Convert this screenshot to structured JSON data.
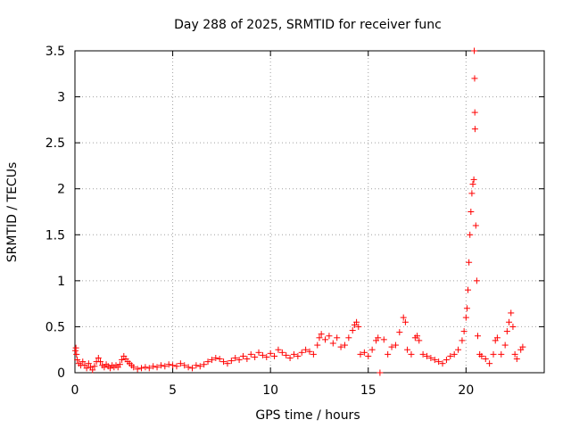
{
  "chart_data": {
    "type": "scatter",
    "title": "Day 288 of 2025, SRMTID for receiver func",
    "xlabel": "GPS time / hours",
    "ylabel": "SRMTID / TECUs",
    "xlim": [
      0,
      24
    ],
    "ylim": [
      0,
      3.5
    ],
    "xticks": [
      0,
      5,
      10,
      15,
      20
    ],
    "xtick_labels": [
      "0",
      "5",
      "10",
      "15",
      "20"
    ],
    "yticks": [
      0,
      0.5,
      1,
      1.5,
      2,
      2.5,
      3,
      3.5
    ],
    "ytick_labels": [
      "0",
      "0.5",
      "1",
      "1.5",
      "2",
      "2.5",
      "3",
      "3.5"
    ],
    "grid": true,
    "marker": "+",
    "series": [
      {
        "name": "SRMTID",
        "color": "#ff0000",
        "points": [
          [
            0.02,
            0.24
          ],
          [
            0.05,
            0.27
          ],
          [
            0.08,
            0.2
          ],
          [
            0.12,
            0.14
          ],
          [
            0.2,
            0.1
          ],
          [
            0.3,
            0.08
          ],
          [
            0.4,
            0.12
          ],
          [
            0.5,
            0.08
          ],
          [
            0.6,
            0.05
          ],
          [
            0.7,
            0.1
          ],
          [
            0.8,
            0.06
          ],
          [
            0.9,
            0.03
          ],
          [
            1.0,
            0.07
          ],
          [
            1.1,
            0.12
          ],
          [
            1.2,
            0.16
          ],
          [
            1.3,
            0.12
          ],
          [
            1.4,
            0.08
          ],
          [
            1.5,
            0.06
          ],
          [
            1.6,
            0.09
          ],
          [
            1.7,
            0.07
          ],
          [
            1.8,
            0.05
          ],
          [
            1.9,
            0.08
          ],
          [
            2.0,
            0.06
          ],
          [
            2.1,
            0.08
          ],
          [
            2.2,
            0.06
          ],
          [
            2.3,
            0.09
          ],
          [
            2.4,
            0.14
          ],
          [
            2.5,
            0.18
          ],
          [
            2.6,
            0.15
          ],
          [
            2.7,
            0.12
          ],
          [
            2.8,
            0.1
          ],
          [
            2.9,
            0.08
          ],
          [
            3.0,
            0.06
          ],
          [
            3.2,
            0.04
          ],
          [
            3.4,
            0.05
          ],
          [
            3.6,
            0.06
          ],
          [
            3.8,
            0.05
          ],
          [
            4.0,
            0.07
          ],
          [
            4.2,
            0.06
          ],
          [
            4.4,
            0.08
          ],
          [
            4.6,
            0.07
          ],
          [
            4.8,
            0.09
          ],
          [
            5.0,
            0.08
          ],
          [
            5.2,
            0.07
          ],
          [
            5.4,
            0.1
          ],
          [
            5.6,
            0.08
          ],
          [
            5.8,
            0.06
          ],
          [
            6.0,
            0.05
          ],
          [
            6.2,
            0.08
          ],
          [
            6.4,
            0.07
          ],
          [
            6.6,
            0.09
          ],
          [
            6.8,
            0.12
          ],
          [
            7.0,
            0.14
          ],
          [
            7.2,
            0.16
          ],
          [
            7.4,
            0.15
          ],
          [
            7.6,
            0.12
          ],
          [
            7.8,
            0.1
          ],
          [
            8.0,
            0.13
          ],
          [
            8.2,
            0.16
          ],
          [
            8.4,
            0.14
          ],
          [
            8.6,
            0.18
          ],
          [
            8.8,
            0.15
          ],
          [
            9.0,
            0.2
          ],
          [
            9.2,
            0.17
          ],
          [
            9.4,
            0.22
          ],
          [
            9.6,
            0.19
          ],
          [
            9.8,
            0.17
          ],
          [
            10.0,
            0.21
          ],
          [
            10.2,
            0.18
          ],
          [
            10.4,
            0.25
          ],
          [
            10.6,
            0.22
          ],
          [
            10.8,
            0.19
          ],
          [
            11.0,
            0.16
          ],
          [
            11.2,
            0.2
          ],
          [
            11.4,
            0.18
          ],
          [
            11.6,
            0.22
          ],
          [
            11.8,
            0.25
          ],
          [
            12.0,
            0.23
          ],
          [
            12.2,
            0.2
          ],
          [
            12.4,
            0.3
          ],
          [
            12.5,
            0.38
          ],
          [
            12.6,
            0.42
          ],
          [
            12.8,
            0.36
          ],
          [
            13.0,
            0.4
          ],
          [
            13.2,
            0.32
          ],
          [
            13.4,
            0.38
          ],
          [
            13.6,
            0.28
          ],
          [
            13.8,
            0.3
          ],
          [
            14.0,
            0.38
          ],
          [
            14.2,
            0.46
          ],
          [
            14.3,
            0.52
          ],
          [
            14.4,
            0.55
          ],
          [
            14.5,
            0.5
          ],
          [
            14.6,
            0.2
          ],
          [
            14.8,
            0.22
          ],
          [
            15.0,
            0.18
          ],
          [
            15.2,
            0.25
          ],
          [
            15.4,
            0.35
          ],
          [
            15.5,
            0.38
          ],
          [
            15.6,
            0.0
          ],
          [
            15.8,
            0.36
          ],
          [
            16.0,
            0.2
          ],
          [
            16.2,
            0.28
          ],
          [
            16.4,
            0.3
          ],
          [
            16.6,
            0.44
          ],
          [
            16.8,
            0.6
          ],
          [
            16.9,
            0.55
          ],
          [
            17.0,
            0.25
          ],
          [
            17.2,
            0.2
          ],
          [
            17.4,
            0.38
          ],
          [
            17.5,
            0.4
          ],
          [
            17.6,
            0.35
          ],
          [
            17.8,
            0.2
          ],
          [
            18.0,
            0.18
          ],
          [
            18.2,
            0.16
          ],
          [
            18.4,
            0.14
          ],
          [
            18.6,
            0.12
          ],
          [
            18.8,
            0.1
          ],
          [
            19.0,
            0.14
          ],
          [
            19.2,
            0.18
          ],
          [
            19.4,
            0.2
          ],
          [
            19.6,
            0.25
          ],
          [
            19.8,
            0.35
          ],
          [
            19.9,
            0.45
          ],
          [
            20.0,
            0.6
          ],
          [
            20.05,
            0.7
          ],
          [
            20.1,
            0.9
          ],
          [
            20.15,
            1.2
          ],
          [
            20.2,
            1.5
          ],
          [
            20.25,
            1.75
          ],
          [
            20.3,
            1.95
          ],
          [
            20.35,
            2.05
          ],
          [
            20.4,
            2.1
          ],
          [
            20.42,
            3.5
          ],
          [
            20.44,
            3.2
          ],
          [
            20.45,
            2.83
          ],
          [
            20.46,
            2.65
          ],
          [
            20.5,
            1.6
          ],
          [
            20.55,
            1.0
          ],
          [
            20.6,
            0.4
          ],
          [
            20.7,
            0.2
          ],
          [
            20.8,
            0.18
          ],
          [
            21.0,
            0.15
          ],
          [
            21.2,
            0.1
          ],
          [
            21.4,
            0.2
          ],
          [
            21.5,
            0.35
          ],
          [
            21.6,
            0.38
          ],
          [
            21.8,
            0.2
          ],
          [
            22.0,
            0.3
          ],
          [
            22.1,
            0.45
          ],
          [
            22.2,
            0.55
          ],
          [
            22.3,
            0.65
          ],
          [
            22.4,
            0.5
          ],
          [
            22.5,
            0.2
          ],
          [
            22.6,
            0.15
          ],
          [
            22.8,
            0.25
          ],
          [
            22.9,
            0.28
          ]
        ]
      }
    ]
  }
}
